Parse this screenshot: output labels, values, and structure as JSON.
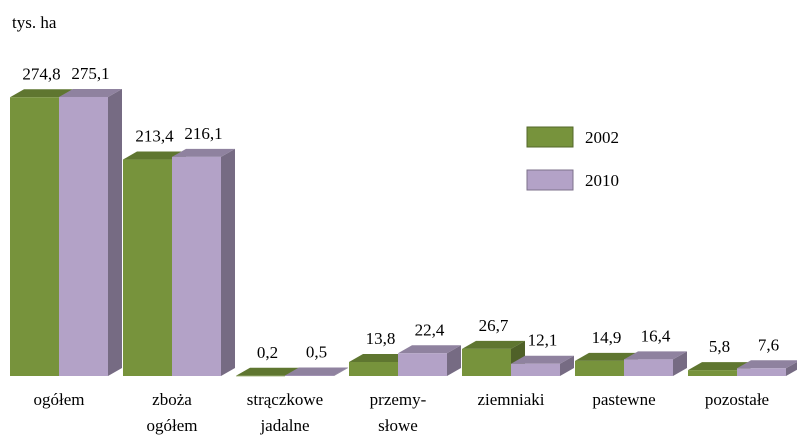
{
  "chart_data": {
    "type": "bar3d",
    "unit_label": "tys. ha",
    "categories": [
      "ogółem",
      "zboża\nogółem",
      "strączkowe\njadalne",
      "przemy-\nsłowe",
      "ziemniaki",
      "pastewne",
      "pozostałe"
    ],
    "series": [
      {
        "name": "2002",
        "color": "#77933c",
        "values": [
          274.8,
          213.4,
          0.2,
          13.8,
          26.7,
          14.9,
          5.8
        ],
        "value_labels": [
          "274,8",
          "213,4",
          "0,2",
          "13,8",
          "26,7",
          "14,9",
          "5,8"
        ]
      },
      {
        "name": "2010",
        "color": "#b3a2c7",
        "values": [
          275.1,
          216.1,
          0.5,
          22.4,
          12.1,
          16.4,
          7.6
        ],
        "value_labels": [
          "275,1",
          "216,1",
          "0,5",
          "22,4",
          "12,1",
          "16,4",
          "7,6"
        ]
      }
    ],
    "ylim": [
      0,
      280
    ],
    "legend": "right"
  }
}
